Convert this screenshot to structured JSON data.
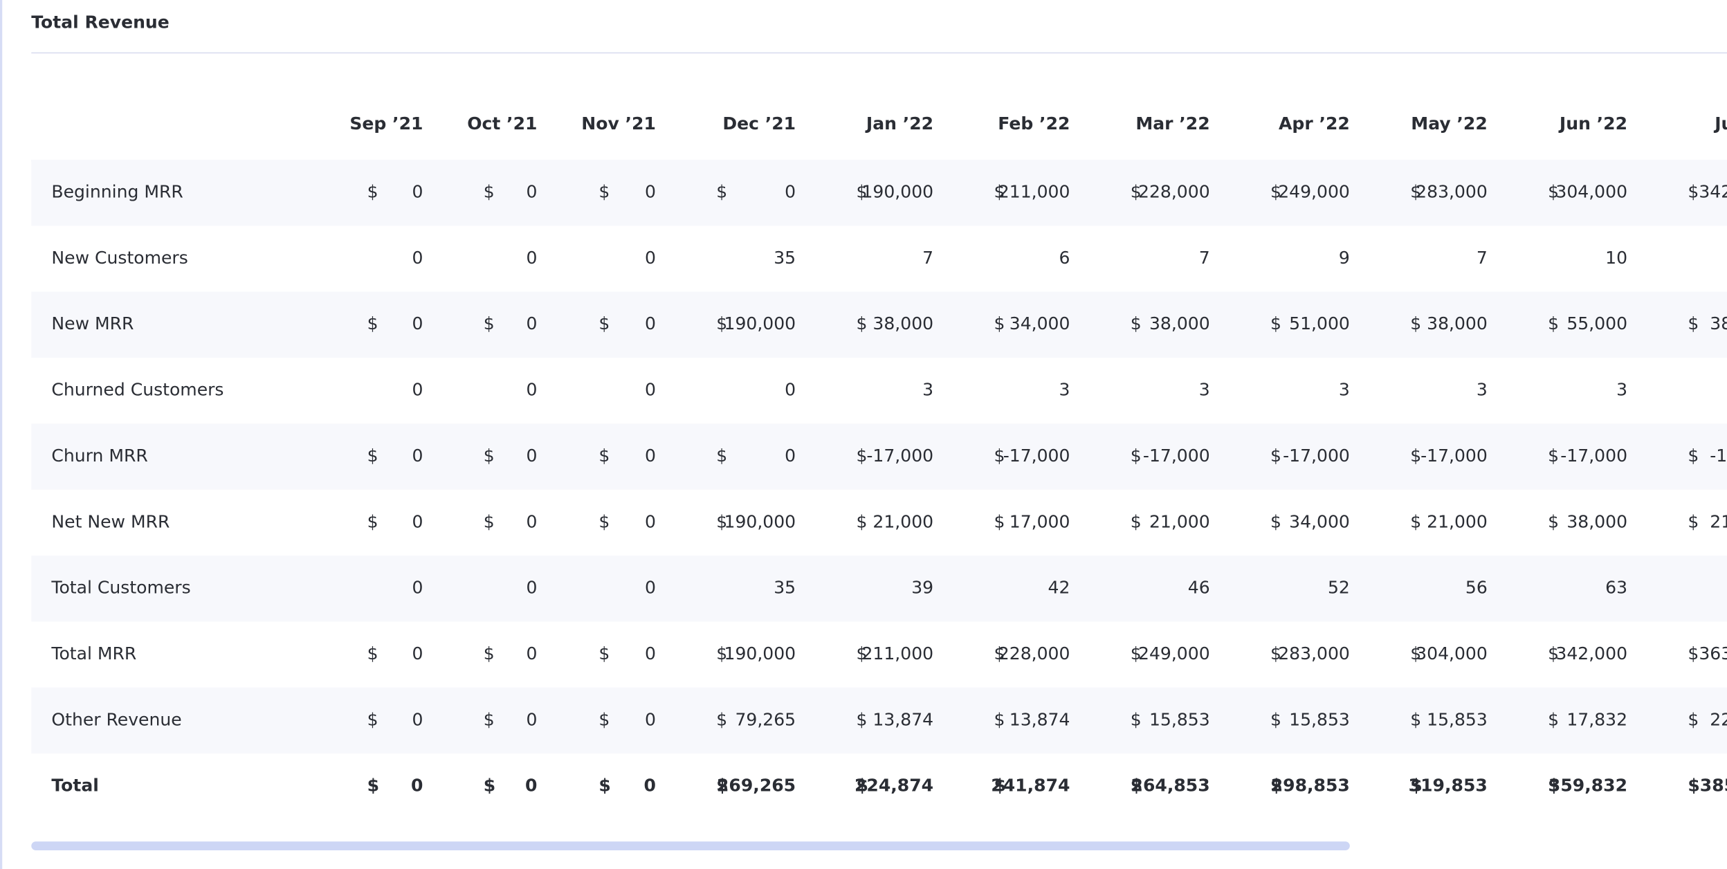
{
  "title": "Total Revenue",
  "columns": [
    "Sep ’21",
    "Oct ’21",
    "Nov ’21",
    "Dec ’21",
    "Jan ’22",
    "Feb ’22",
    "Mar ’22",
    "Apr ’22",
    "May ’22",
    "Jun ’22",
    "Ju"
  ],
  "rows": [
    {
      "label": "Beginning MRR",
      "cells": [
        [
          "$",
          "0"
        ],
        [
          "$",
          "0"
        ],
        [
          "$",
          "0"
        ],
        [
          "$",
          "0"
        ],
        [
          "$",
          "190,000"
        ],
        [
          "$",
          "211,000"
        ],
        [
          "$",
          "228,000"
        ],
        [
          "$",
          "249,000"
        ],
        [
          "$",
          "283,000"
        ],
        [
          "$",
          "304,000"
        ],
        "$342"
      ]
    },
    {
      "label": "New Customers",
      "cells": [
        "0",
        "0",
        "0",
        "35",
        "7",
        "6",
        "7",
        "9",
        "7",
        "10",
        null
      ]
    },
    {
      "label": "New MRR",
      "cells": [
        [
          "$",
          "0"
        ],
        [
          "$",
          "0"
        ],
        [
          "$",
          "0"
        ],
        [
          "$",
          "190,000"
        ],
        [
          "$",
          "38,000"
        ],
        [
          "$",
          "34,000"
        ],
        [
          "$",
          "38,000"
        ],
        [
          "$",
          "51,000"
        ],
        [
          "$",
          "38,000"
        ],
        [
          "$",
          "55,000"
        ],
        "$  38"
      ]
    },
    {
      "label": "Churned Customers",
      "cells": [
        "0",
        "0",
        "0",
        "0",
        "3",
        "3",
        "3",
        "3",
        "3",
        "3",
        null
      ]
    },
    {
      "label": "Churn MRR",
      "cells": [
        [
          "$",
          "0"
        ],
        [
          "$",
          "0"
        ],
        [
          "$",
          "0"
        ],
        [
          "$",
          "0"
        ],
        [
          "$",
          "-17,000"
        ],
        [
          "$",
          "-17,000"
        ],
        [
          "$",
          "-17,000"
        ],
        [
          "$",
          "-17,000"
        ],
        [
          "$",
          "-17,000"
        ],
        [
          "$",
          "-17,000"
        ],
        "$  -1"
      ]
    },
    {
      "label": "Net New MRR",
      "cells": [
        [
          "$",
          "0"
        ],
        [
          "$",
          "0"
        ],
        [
          "$",
          "0"
        ],
        [
          "$",
          "190,000"
        ],
        [
          "$",
          "21,000"
        ],
        [
          "$",
          "17,000"
        ],
        [
          "$",
          "21,000"
        ],
        [
          "$",
          "34,000"
        ],
        [
          "$",
          "21,000"
        ],
        [
          "$",
          "38,000"
        ],
        "$  21"
      ]
    },
    {
      "label": "Total Customers",
      "cells": [
        "0",
        "0",
        "0",
        "35",
        "39",
        "42",
        "46",
        "52",
        "56",
        "63",
        null
      ]
    },
    {
      "label": "Total MRR",
      "cells": [
        [
          "$",
          "0"
        ],
        [
          "$",
          "0"
        ],
        [
          "$",
          "0"
        ],
        [
          "$",
          "190,000"
        ],
        [
          "$",
          "211,000"
        ],
        [
          "$",
          "228,000"
        ],
        [
          "$",
          "249,000"
        ],
        [
          "$",
          "283,000"
        ],
        [
          "$",
          "304,000"
        ],
        [
          "$",
          "342,000"
        ],
        "$363"
      ]
    },
    {
      "label": "Other Revenue",
      "cells": [
        [
          "$",
          "0"
        ],
        [
          "$",
          "0"
        ],
        [
          "$",
          "0"
        ],
        [
          "$",
          "79,265"
        ],
        [
          "$",
          "13,874"
        ],
        [
          "$",
          "13,874"
        ],
        [
          "$",
          "15,853"
        ],
        [
          "$",
          "15,853"
        ],
        [
          "$",
          "15,853"
        ],
        [
          "$",
          "17,832"
        ],
        "$  22"
      ]
    },
    {
      "label": "Total",
      "emphasis": true,
      "cells": [
        [
          "$",
          "0"
        ],
        [
          "$",
          "0"
        ],
        [
          "$",
          "0"
        ],
        [
          "$",
          "269,265"
        ],
        [
          "$",
          "224,874"
        ],
        [
          "$",
          "241,874"
        ],
        [
          "$",
          "264,853"
        ],
        [
          "$",
          "298,853"
        ],
        [
          "$",
          "319,853"
        ],
        [
          "$",
          "359,832"
        ],
        "$385"
      ]
    }
  ]
}
